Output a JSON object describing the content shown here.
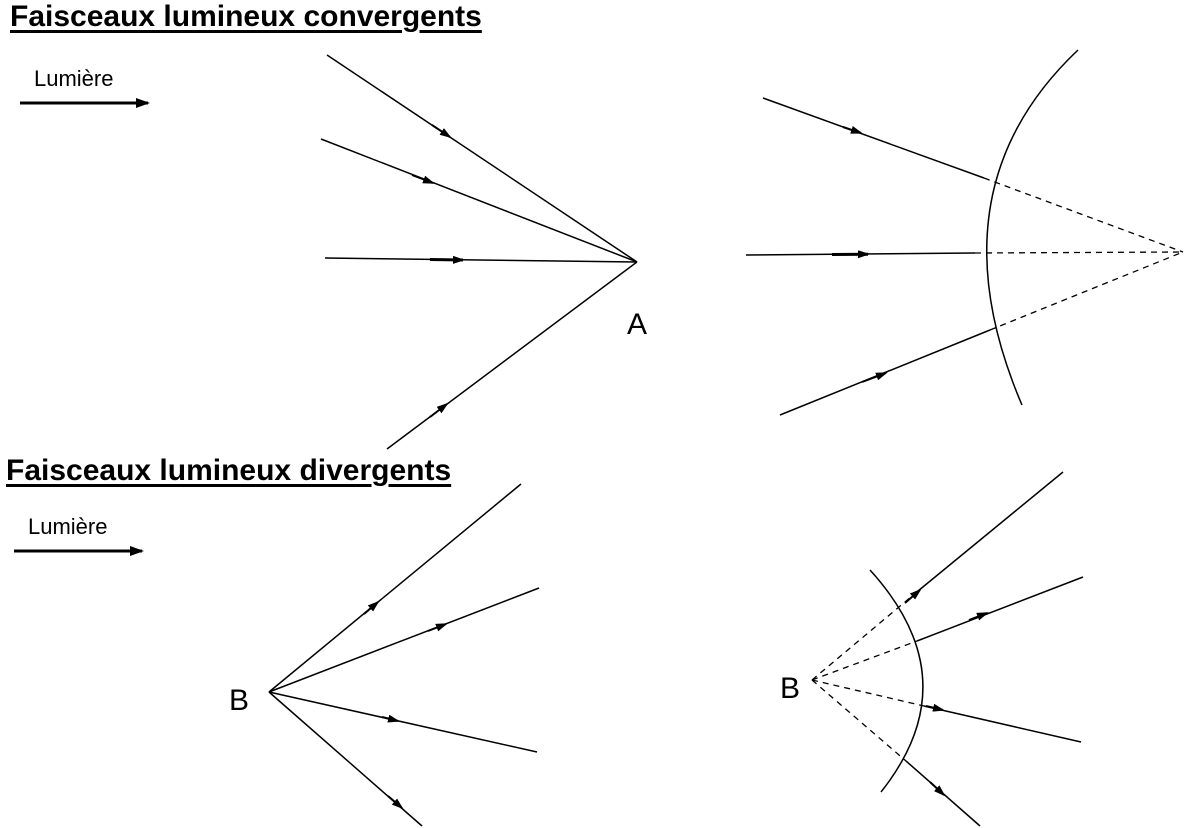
{
  "convergent": {
    "heading": "Faisceaux lumineux convergents",
    "light_label": "Lumière",
    "point_label": "A"
  },
  "divergent": {
    "heading": "Faisceaux lumineux divergents",
    "light_label": "Lumière",
    "point_label_left": "B",
    "point_label_right": "B"
  },
  "style": {
    "line_color": "#000000"
  }
}
